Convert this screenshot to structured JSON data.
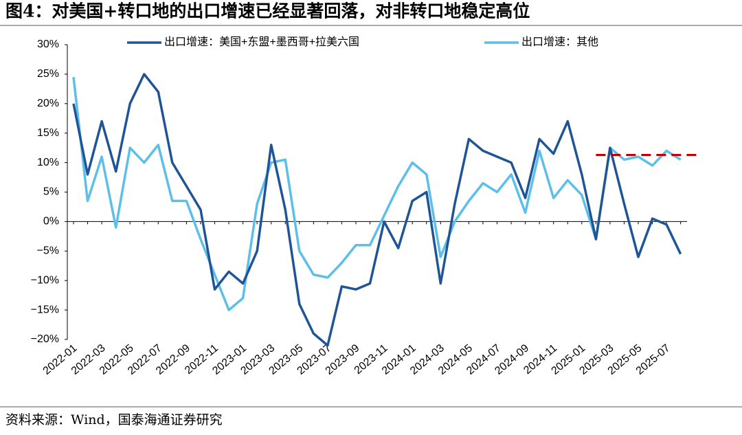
{
  "chart_data": {
    "type": "line",
    "title": "图4：对美国+转口地的出口增速已经显著回落，对非转口地稳定高位",
    "source": "资料来源：Wind，国泰海通证券研究",
    "categories": [
      "2022-01",
      null,
      "2022-03",
      null,
      "2022-05",
      null,
      "2022-07",
      null,
      "2022-09",
      null,
      "2022-11",
      null,
      "2023-01",
      null,
      "2023-03",
      null,
      "2023-05",
      null,
      "2023-07",
      null,
      "2023-09",
      null,
      "2023-11",
      null,
      "2024-01",
      null,
      "2024-03",
      null,
      "2024-05",
      null,
      "2024-07",
      null,
      "2024-09",
      null,
      "2024-11",
      null,
      "2025-01",
      null,
      "2025-03",
      null,
      "2025-05",
      null,
      "2025-07",
      null
    ],
    "series": [
      {
        "name": "出口增速：美国+东盟+墨西哥+拉美六国",
        "color": "#1f5597",
        "values": [
          20,
          8,
          17,
          8.5,
          20,
          25,
          22,
          10,
          6,
          2,
          -11.5,
          -8.5,
          -10.5,
          -5,
          13,
          2,
          -14,
          -19,
          -21,
          -11,
          -11.5,
          -10.5,
          0,
          -4.5,
          3.5,
          5,
          -10.5,
          3,
          14,
          12,
          11,
          10,
          4,
          14,
          11.5,
          17,
          8,
          -3,
          12.5,
          3,
          -6,
          0.5,
          -0.5,
          -5.5
        ]
      },
      {
        "name": "出口增速：其他",
        "color": "#5bbfea",
        "values": [
          24.5,
          3.5,
          11,
          -1,
          12.5,
          10,
          13,
          3.5,
          3.5,
          -3,
          -9,
          -15,
          -13,
          3,
          10,
          10.5,
          -5,
          -9,
          -9.5,
          -7,
          -4,
          -4,
          1,
          6,
          10,
          8,
          -6,
          0,
          3.5,
          6.5,
          5,
          8,
          1.5,
          12,
          4,
          7,
          4.5,
          -3,
          12.5,
          10.5,
          11,
          9.5,
          12,
          10.5
        ]
      }
    ],
    "reference_line": {
      "value": 11.3,
      "color": "#c00000"
    },
    "ylim": [
      -20,
      30
    ],
    "yticks": [
      {
        "value": -20,
        "label": "−20%"
      },
      {
        "value": -15,
        "label": "−15%"
      },
      {
        "value": -10,
        "label": "−10%"
      },
      {
        "value": -5,
        "label": "−5%"
      },
      {
        "value": 0,
        "label": "0%"
      },
      {
        "value": 5,
        "label": "5%"
      },
      {
        "value": 10,
        "label": "10%"
      },
      {
        "value": 15,
        "label": "15%"
      },
      {
        "value": 20,
        "label": "20%"
      },
      {
        "value": 25,
        "label": "25%"
      },
      {
        "value": 30,
        "label": "30%"
      }
    ]
  }
}
